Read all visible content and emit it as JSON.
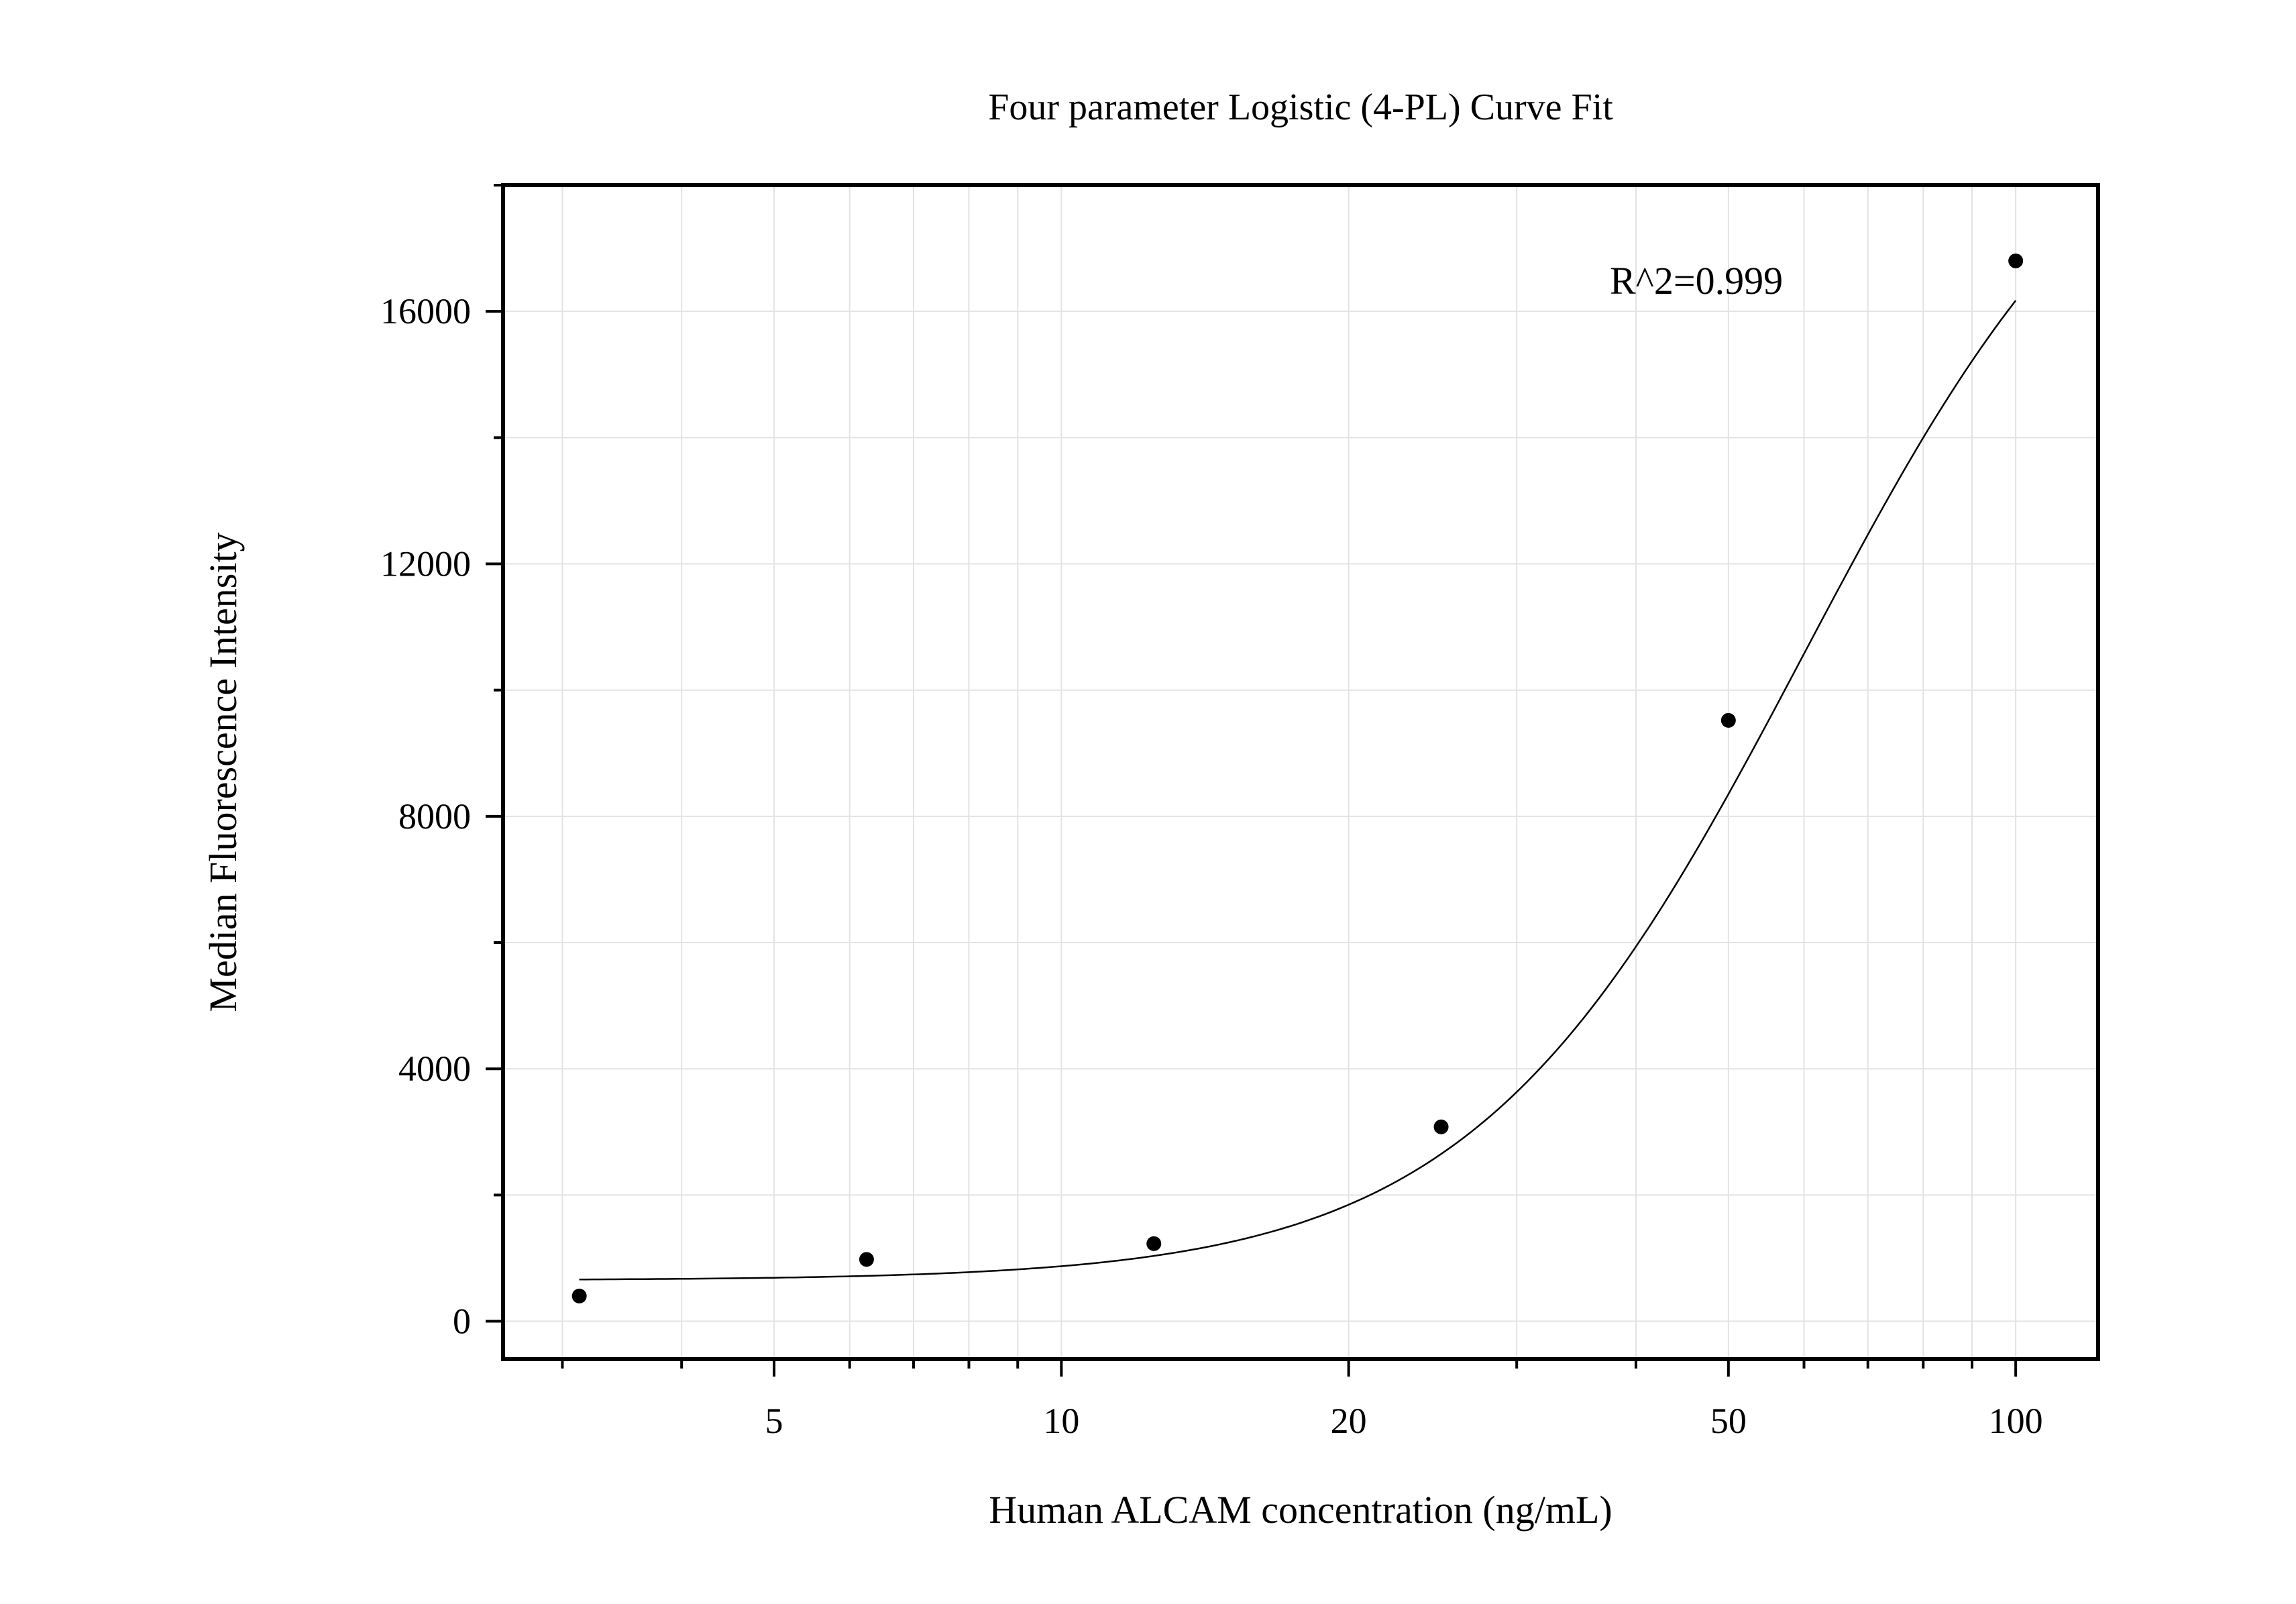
{
  "chart_data": {
    "type": "scatter",
    "title": "Four parameter Logistic (4-PL) Curve Fit",
    "xlabel": "Human ALCAM concentration (ng/mL)",
    "ylabel": "Median Fluorescence Intensity",
    "x_scale": "log",
    "xlim": [
      2.6,
      122
    ],
    "ylim": [
      -600,
      18000
    ],
    "x_ticks": [
      5,
      10,
      20,
      50,
      100
    ],
    "x_tick_labels": [
      "5",
      "10",
      "20",
      "50",
      "100"
    ],
    "y_ticks": [
      0,
      4000,
      8000,
      12000,
      16000
    ],
    "y_tick_labels": [
      "0",
      "4000",
      "8000",
      "12000",
      "16000"
    ],
    "grid": true,
    "annotations": [
      {
        "text": "R^2=0.999"
      }
    ],
    "series": [
      {
        "kind": "points",
        "x": [
          3.125,
          6.25,
          12.5,
          25,
          50,
          100
        ],
        "y": [
          400,
          980,
          1230,
          3080,
          9520,
          16800
        ]
      },
      {
        "kind": "fit",
        "model": "4PL",
        "A": 650,
        "D": 20500,
        "C": 60,
        "B": 2.5
      }
    ],
    "colors": {
      "line": "#000000",
      "grid": "#e3e3e3",
      "marker": "#000000"
    }
  }
}
